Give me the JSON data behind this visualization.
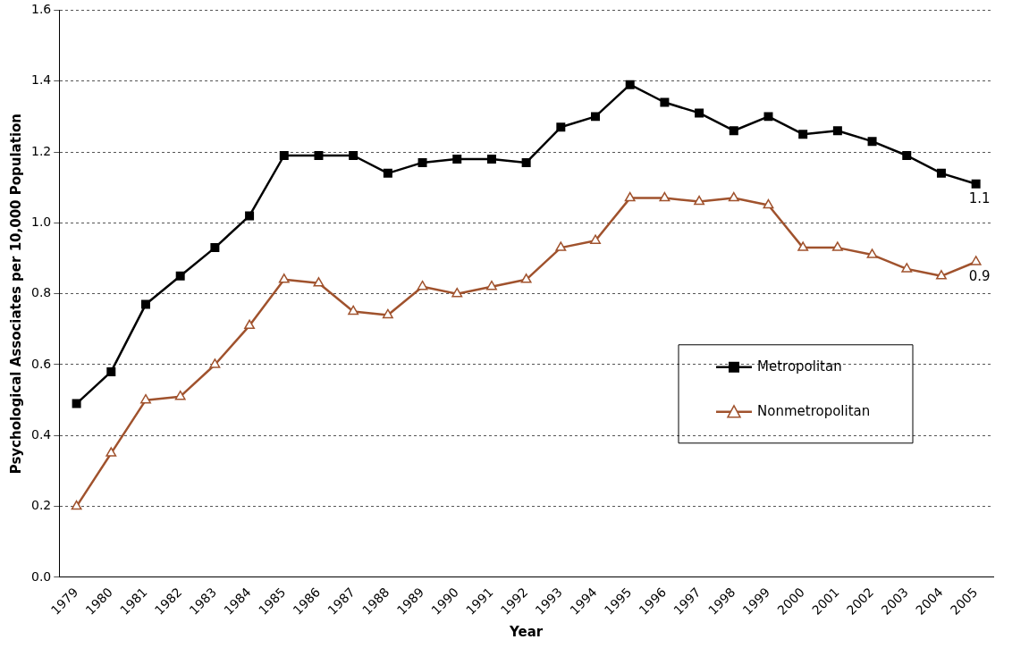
{
  "chart_data": {
    "type": "line",
    "xlabel": "Year",
    "ylabel": "Psychological Associates per 10,000 Population",
    "categories": [
      "1979",
      "1980",
      "1981",
      "1982",
      "1983",
      "1984",
      "1985",
      "1986",
      "1987",
      "1988",
      "1989",
      "1990",
      "1991",
      "1992",
      "1993",
      "1994",
      "1995",
      "1996",
      "1997",
      "1998",
      "1999",
      "2000",
      "2001",
      "2002",
      "2003",
      "2004",
      "2005"
    ],
    "series": [
      {
        "name": "Metropolitan",
        "color": "#000000",
        "marker": "square",
        "values": [
          0.49,
          0.58,
          0.77,
          0.85,
          0.93,
          1.02,
          1.19,
          1.19,
          1.19,
          1.14,
          1.17,
          1.18,
          1.18,
          1.17,
          1.27,
          1.3,
          1.39,
          1.34,
          1.31,
          1.26,
          1.3,
          1.25,
          1.26,
          1.23,
          1.19,
          1.14,
          1.11
        ]
      },
      {
        "name": "Nonmetropolitan",
        "color": "#a0522d",
        "marker": "triangle",
        "values": [
          0.2,
          0.35,
          0.5,
          0.51,
          0.6,
          0.71,
          0.84,
          0.83,
          0.75,
          0.74,
          0.82,
          0.8,
          0.82,
          0.84,
          0.93,
          0.95,
          1.07,
          1.07,
          1.06,
          1.07,
          1.05,
          0.93,
          0.93,
          0.91,
          0.87,
          0.85,
          0.89
        ]
      }
    ],
    "annotations": [
      {
        "text": "1.1",
        "x": "2005",
        "y": 1.11
      },
      {
        "text": "0.9",
        "x": "2005",
        "y": 0.89
      }
    ],
    "ylim": [
      0,
      1.6
    ],
    "yticks": [
      {
        "value": 0,
        "label": "0.0"
      },
      {
        "value": 0.2,
        "label": "0.2"
      },
      {
        "value": 0.4,
        "label": "0.4"
      },
      {
        "value": 0.6,
        "label": "0.6"
      },
      {
        "value": 0.8,
        "label": "0.8"
      },
      {
        "value": 1,
        "label": "1.0"
      },
      {
        "value": 1.2,
        "label": "1.2"
      },
      {
        "value": 1.4,
        "label": "1.4"
      },
      {
        "value": 1.6,
        "label": "1.6"
      }
    ],
    "grid": "y",
    "legend": "center right",
    "line_style": "solid"
  }
}
